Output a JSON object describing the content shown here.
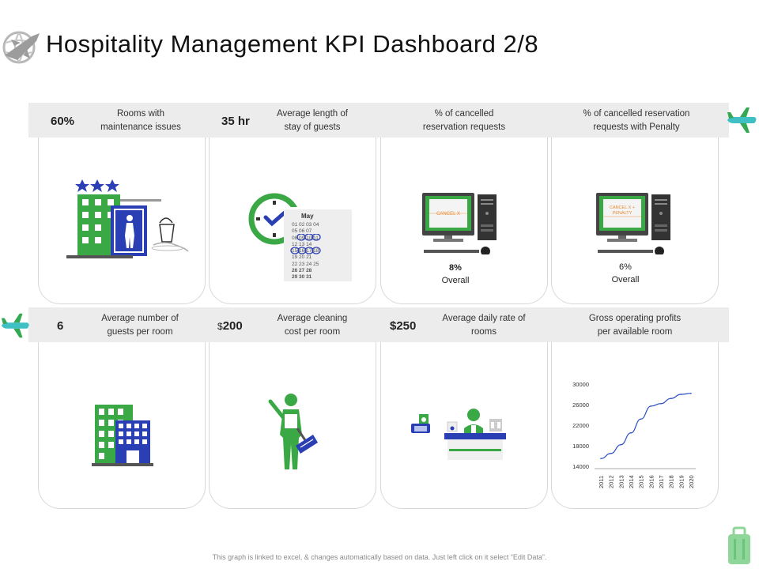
{
  "title": "Hospitality Management KPI Dashboard 2/8",
  "colors": {
    "green": "#3aa845",
    "blue": "#2b3fb4",
    "band": "#ececec",
    "line": "#2b4fc4"
  },
  "kpis_top": [
    {
      "value": "60%",
      "label_line1": "Rooms with",
      "label_line2": "maintenance issues"
    },
    {
      "value": "35 hr",
      "label_line1": "Average length of",
      "label_line2": "stay of guests"
    },
    {
      "value": "",
      "label_line1": "% of cancelled",
      "label_line2": "reservation requests",
      "overall_value": "8%",
      "overall_label": "Overall",
      "screen_text": "CANCEL X"
    },
    {
      "value": "",
      "label_line1": "% of cancelled reservation",
      "label_line2": "requests with Penalty",
      "overall_value": "6%",
      "overall_label": "Overall",
      "screen_text1": "CANCEL X +",
      "screen_text2": "PENALTY"
    }
  ],
  "kpis_bottom": [
    {
      "value": "6",
      "label_line1": "Average number of",
      "label_line2": "guests per room"
    },
    {
      "currency": "$",
      "value": "200",
      "label_line1": "Average cleaning",
      "label_line2": "cost per room"
    },
    {
      "value": "$250",
      "label_line1": "Average daily rate of",
      "label_line2": "rooms"
    },
    {
      "value": "",
      "label_line1": "Gross operating profits",
      "label_line2": "per available room"
    }
  ],
  "calendar": {
    "month": "May",
    "rows": [
      "01 02 03 04",
      "05 06 07",
      "08 09 10 11",
      "12 13 14",
      "15 16 17 18",
      "19 20 21",
      "22 23 24 25",
      "26 27 28",
      "29 30 31"
    ]
  },
  "chart_data": {
    "type": "line",
    "title": "Gross operating profits per available room",
    "x": [
      "2011",
      "2012",
      "2013",
      "2014",
      "2015",
      "2016",
      "2017",
      "2018",
      "2019",
      "2020"
    ],
    "values": [
      15500,
      16500,
      18200,
      20500,
      23200,
      25700,
      26200,
      27200,
      28000,
      28200
    ],
    "yticks": [
      "30000",
      "26000",
      "22000",
      "18000",
      "14000"
    ],
    "ylim": [
      14000,
      30000
    ],
    "grid": false,
    "xlabel": "",
    "ylabel": ""
  },
  "footnote": "This graph is linked to excel, & changes automatically based on data. Just left click on it select “Edit Data”."
}
